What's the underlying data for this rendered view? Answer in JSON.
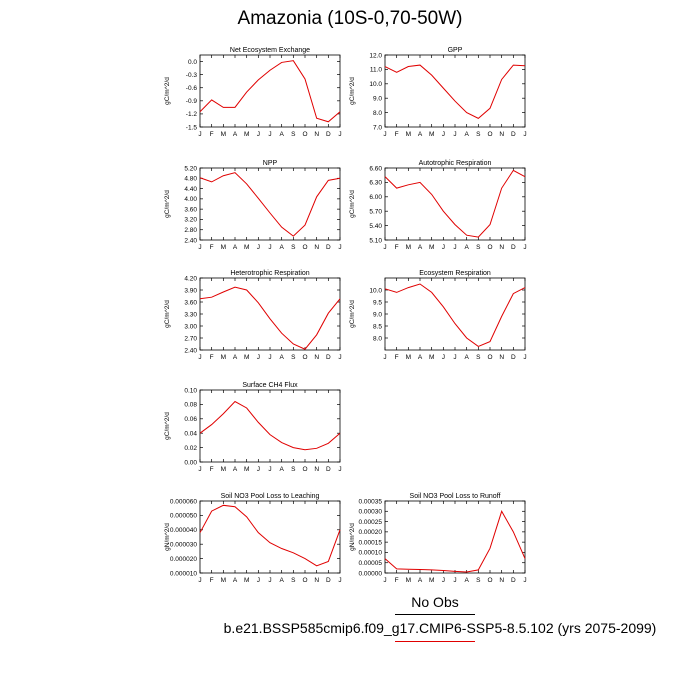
{
  "figure": {
    "title": "Amazonia (10S-0,70-50W)",
    "legend_obs": "No Obs",
    "case_label": "b.e21.BSSP585cmip6.f09_g17.CMIP6-SSP5-8.5.102 (yrs 2075-2099)",
    "line_color": "#e00000"
  },
  "chart_data": [
    {
      "type": "line",
      "title": "Net Ecosystem Exchange",
      "ylabel": "gC/m^2/d",
      "x": [
        "J",
        "F",
        "M",
        "A",
        "M",
        "J",
        "J",
        "A",
        "S",
        "O",
        "N",
        "D",
        "J"
      ],
      "ylim": [
        -1.5,
        0.15
      ],
      "yticks": [
        "0.0",
        "-0.3",
        "-0.6",
        "-0.9",
        "-1.2",
        "-1.5"
      ],
      "series": [
        {
          "values": [
            -1.15,
            -0.88,
            -1.05,
            -1.05,
            -0.7,
            -0.42,
            -0.2,
            -0.02,
            0.02,
            -0.4,
            -1.3,
            -1.38,
            -1.15
          ]
        }
      ]
    },
    {
      "type": "line",
      "title": "GPP",
      "ylabel": "gC/m^2/d",
      "x": [
        "J",
        "F",
        "M",
        "A",
        "M",
        "J",
        "J",
        "A",
        "S",
        "O",
        "N",
        "D",
        "J"
      ],
      "ylim": [
        7.0,
        12.0
      ],
      "yticks": [
        "12.0",
        "11.0",
        "10.0",
        "9.0",
        "8.0",
        "7.0"
      ],
      "series": [
        {
          "values": [
            11.2,
            10.8,
            11.2,
            11.3,
            10.6,
            9.7,
            8.8,
            8.0,
            7.6,
            8.3,
            10.3,
            11.3,
            11.25
          ]
        }
      ]
    },
    {
      "type": "line",
      "title": "NPP",
      "ylabel": "gC/m^2/d",
      "x": [
        "J",
        "F",
        "M",
        "A",
        "M",
        "J",
        "J",
        "A",
        "S",
        "O",
        "N",
        "D",
        "J"
      ],
      "ylim": [
        2.4,
        5.2
      ],
      "yticks": [
        "5.20",
        "4.80",
        "4.40",
        "4.00",
        "3.60",
        "3.20",
        "2.80",
        "2.40"
      ],
      "series": [
        {
          "values": [
            4.82,
            4.66,
            4.9,
            5.02,
            4.58,
            4.02,
            3.45,
            2.9,
            2.55,
            2.98,
            4.08,
            4.72,
            4.8
          ]
        }
      ]
    },
    {
      "type": "line",
      "title": "Autotrophic Respiration",
      "ylabel": "gC/m^2/d",
      "x": [
        "J",
        "F",
        "M",
        "A",
        "M",
        "J",
        "J",
        "A",
        "S",
        "O",
        "N",
        "D",
        "J"
      ],
      "ylim": [
        5.1,
        6.6
      ],
      "yticks": [
        "6.60",
        "6.30",
        "6.00",
        "5.70",
        "5.40",
        "5.10"
      ],
      "series": [
        {
          "values": [
            6.42,
            6.18,
            6.25,
            6.3,
            6.05,
            5.7,
            5.42,
            5.2,
            5.16,
            5.42,
            6.18,
            6.55,
            6.42
          ]
        }
      ]
    },
    {
      "type": "line",
      "title": "Heterotrophic Respiration",
      "ylabel": "gC/m^2/d",
      "x": [
        "J",
        "F",
        "M",
        "A",
        "M",
        "J",
        "J",
        "A",
        "S",
        "O",
        "N",
        "D",
        "J"
      ],
      "ylim": [
        2.4,
        4.2
      ],
      "yticks": [
        "4.20",
        "3.90",
        "3.60",
        "3.30",
        "3.00",
        "2.70",
        "2.40"
      ],
      "series": [
        {
          "values": [
            3.68,
            3.72,
            3.85,
            3.97,
            3.9,
            3.58,
            3.18,
            2.82,
            2.55,
            2.42,
            2.78,
            3.32,
            3.68
          ]
        }
      ]
    },
    {
      "type": "line",
      "title": "Ecosystem Respiration",
      "ylabel": "gC/m^2/d",
      "x": [
        "J",
        "F",
        "M",
        "A",
        "M",
        "J",
        "J",
        "A",
        "S",
        "O",
        "N",
        "D",
        "J"
      ],
      "ylim": [
        7.5,
        10.5
      ],
      "yticks": [
        "10.0",
        "9.5",
        "9.0",
        "8.5",
        "8.0"
      ],
      "series": [
        {
          "values": [
            10.05,
            9.9,
            10.1,
            10.25,
            9.9,
            9.3,
            8.6,
            8.0,
            7.65,
            7.85,
            8.9,
            9.85,
            10.1
          ]
        }
      ]
    },
    {
      "type": "line",
      "title": "Surface CH4 Flux",
      "ylabel": "gC/m^2/d",
      "x": [
        "J",
        "F",
        "M",
        "A",
        "M",
        "J",
        "J",
        "A",
        "S",
        "O",
        "N",
        "D",
        "J"
      ],
      "ylim": [
        0.0,
        0.1
      ],
      "yticks": [
        "0.10",
        "0.08",
        "0.06",
        "0.04",
        "0.02",
        "0.00"
      ],
      "series": [
        {
          "values": [
            0.04,
            0.052,
            0.067,
            0.084,
            0.075,
            0.055,
            0.038,
            0.027,
            0.02,
            0.017,
            0.019,
            0.026,
            0.04
          ]
        }
      ]
    },
    {
      "type": "line",
      "title": "Soil NO3 Pool Loss to Leaching",
      "ylabel": "gN/m^2/d",
      "x": [
        "J",
        "F",
        "M",
        "A",
        "M",
        "J",
        "J",
        "A",
        "S",
        "O",
        "N",
        "D",
        "J"
      ],
      "ylim": [
        1e-05,
        6e-05
      ],
      "yticks": [
        "0.000060",
        "0.000050",
        "0.000040",
        "0.000030",
        "0.000020",
        "0.000010"
      ],
      "series": [
        {
          "values": [
            3.8e-05,
            5.3e-05,
            5.7e-05,
            5.6e-05,
            4.9e-05,
            3.8e-05,
            3.1e-05,
            2.7e-05,
            2.4e-05,
            2e-05,
            1.5e-05,
            1.8e-05,
            4e-05
          ]
        }
      ]
    },
    {
      "type": "line",
      "title": "Soil NO3 Pool Loss to Runoff",
      "ylabel": "gN/m^2/d",
      "x": [
        "J",
        "F",
        "M",
        "A",
        "M",
        "J",
        "J",
        "A",
        "S",
        "O",
        "N",
        "D",
        "J"
      ],
      "ylim": [
        0.0,
        0.00035
      ],
      "yticks": [
        "0.00035",
        "0.00030",
        "0.00025",
        "0.00020",
        "0.00015",
        "0.00010",
        "0.00005",
        "0.00000"
      ],
      "series": [
        {
          "values": [
            7e-05,
            2e-05,
            1.8e-05,
            1.7e-05,
            1.5e-05,
            1.2e-05,
            8e-06,
            5e-06,
            1.5e-05,
            0.00012,
            0.0003,
            0.0002,
            7e-05
          ]
        }
      ]
    }
  ]
}
